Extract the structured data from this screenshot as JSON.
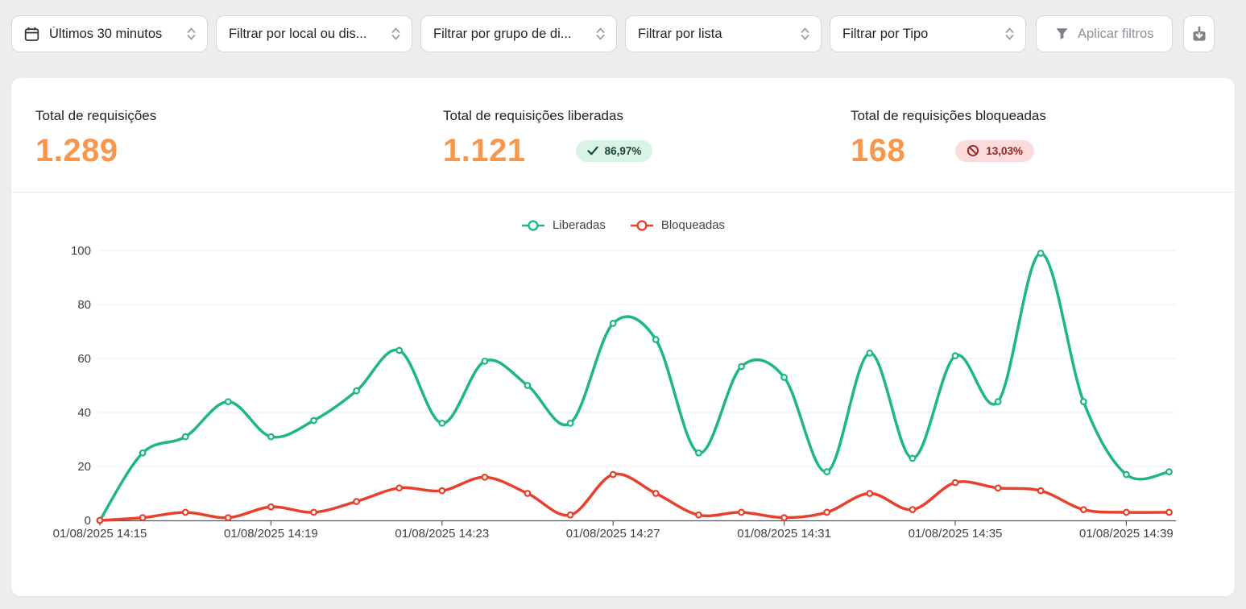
{
  "filters": {
    "selects": [
      {
        "label": "Últimos 30 minutos",
        "icon": "calendar-icon"
      },
      {
        "label": "Filtrar por local ou dis..."
      },
      {
        "label": "Filtrar por grupo de di..."
      },
      {
        "label": "Filtrar por lista"
      },
      {
        "label": "Filtrar por Tipo"
      }
    ],
    "caret_icon": "unfold-chevron-icon",
    "apply_label": "Aplicar filtros",
    "apply_icon": "filter-funnel-icon",
    "export_icon": "download-icon"
  },
  "stats": {
    "total": {
      "label": "Total de requisições",
      "value": "1.289"
    },
    "allowed": {
      "label": "Total de requisições liberadas",
      "value": "1.121",
      "badge_text": "86,97%",
      "badge_icon": "check-icon"
    },
    "blocked": {
      "label": "Total de requisições bloqueadas",
      "value": "168",
      "badge_text": "13,03%",
      "badge_icon": "prohibited-icon"
    }
  },
  "colors": {
    "accent_orange": "#f8974c",
    "series_green": "#1db87d",
    "series_red": "#e8402d",
    "badge_green_bg": "#d9f3e5",
    "badge_green_text": "#1c4437",
    "badge_green_icon": "#0e4c37",
    "badge_red_bg": "#fbdbdb",
    "badge_red_text": "#a02121",
    "gridline": "#e8edf3",
    "axis_line": "#55585d",
    "axis_label": "#3f4347"
  },
  "chart_data": {
    "type": "line",
    "smooth": true,
    "legend_position": "top-center",
    "grid": "horizontal",
    "ylim": [
      0,
      100
    ],
    "yticks": [
      0,
      20,
      40,
      60,
      80,
      100
    ],
    "label_every": 4,
    "x_tick_labels": [
      "01/08/2025 14:15",
      "01/08/2025 14:19",
      "01/08/2025 14:23",
      "01/08/2025 14:27",
      "01/08/2025 14:31",
      "01/08/2025 14:35",
      "01/08/2025 14:39"
    ],
    "x": [
      "01/08/2025 14:15",
      "01/08/2025 14:16",
      "01/08/2025 14:17",
      "01/08/2025 14:18",
      "01/08/2025 14:19",
      "01/08/2025 14:20",
      "01/08/2025 14:21",
      "01/08/2025 14:22",
      "01/08/2025 14:23",
      "01/08/2025 14:24",
      "01/08/2025 14:25",
      "01/08/2025 14:26",
      "01/08/2025 14:27",
      "01/08/2025 14:28",
      "01/08/2025 14:29",
      "01/08/2025 14:30",
      "01/08/2025 14:31",
      "01/08/2025 14:32",
      "01/08/2025 14:33",
      "01/08/2025 14:34",
      "01/08/2025 14:35",
      "01/08/2025 14:36",
      "01/08/2025 14:37",
      "01/08/2025 14:38",
      "01/08/2025 14:39",
      "01/08/2025 14:40"
    ],
    "series": [
      {
        "name": "Liberadas",
        "color": "#1db87d",
        "values": [
          0,
          25,
          31,
          44,
          31,
          37,
          48,
          63,
          36,
          59,
          50,
          36,
          73,
          67,
          25,
          57,
          53,
          18,
          62,
          23,
          61,
          44,
          99,
          44,
          17,
          18
        ]
      },
      {
        "name": "Bloqueadas",
        "color": "#e8402d",
        "values": [
          0,
          1,
          3,
          1,
          5,
          3,
          7,
          12,
          11,
          16,
          10,
          2,
          17,
          10,
          2,
          3,
          1,
          3,
          10,
          4,
          14,
          12,
          11,
          4,
          3,
          3
        ]
      }
    ]
  }
}
